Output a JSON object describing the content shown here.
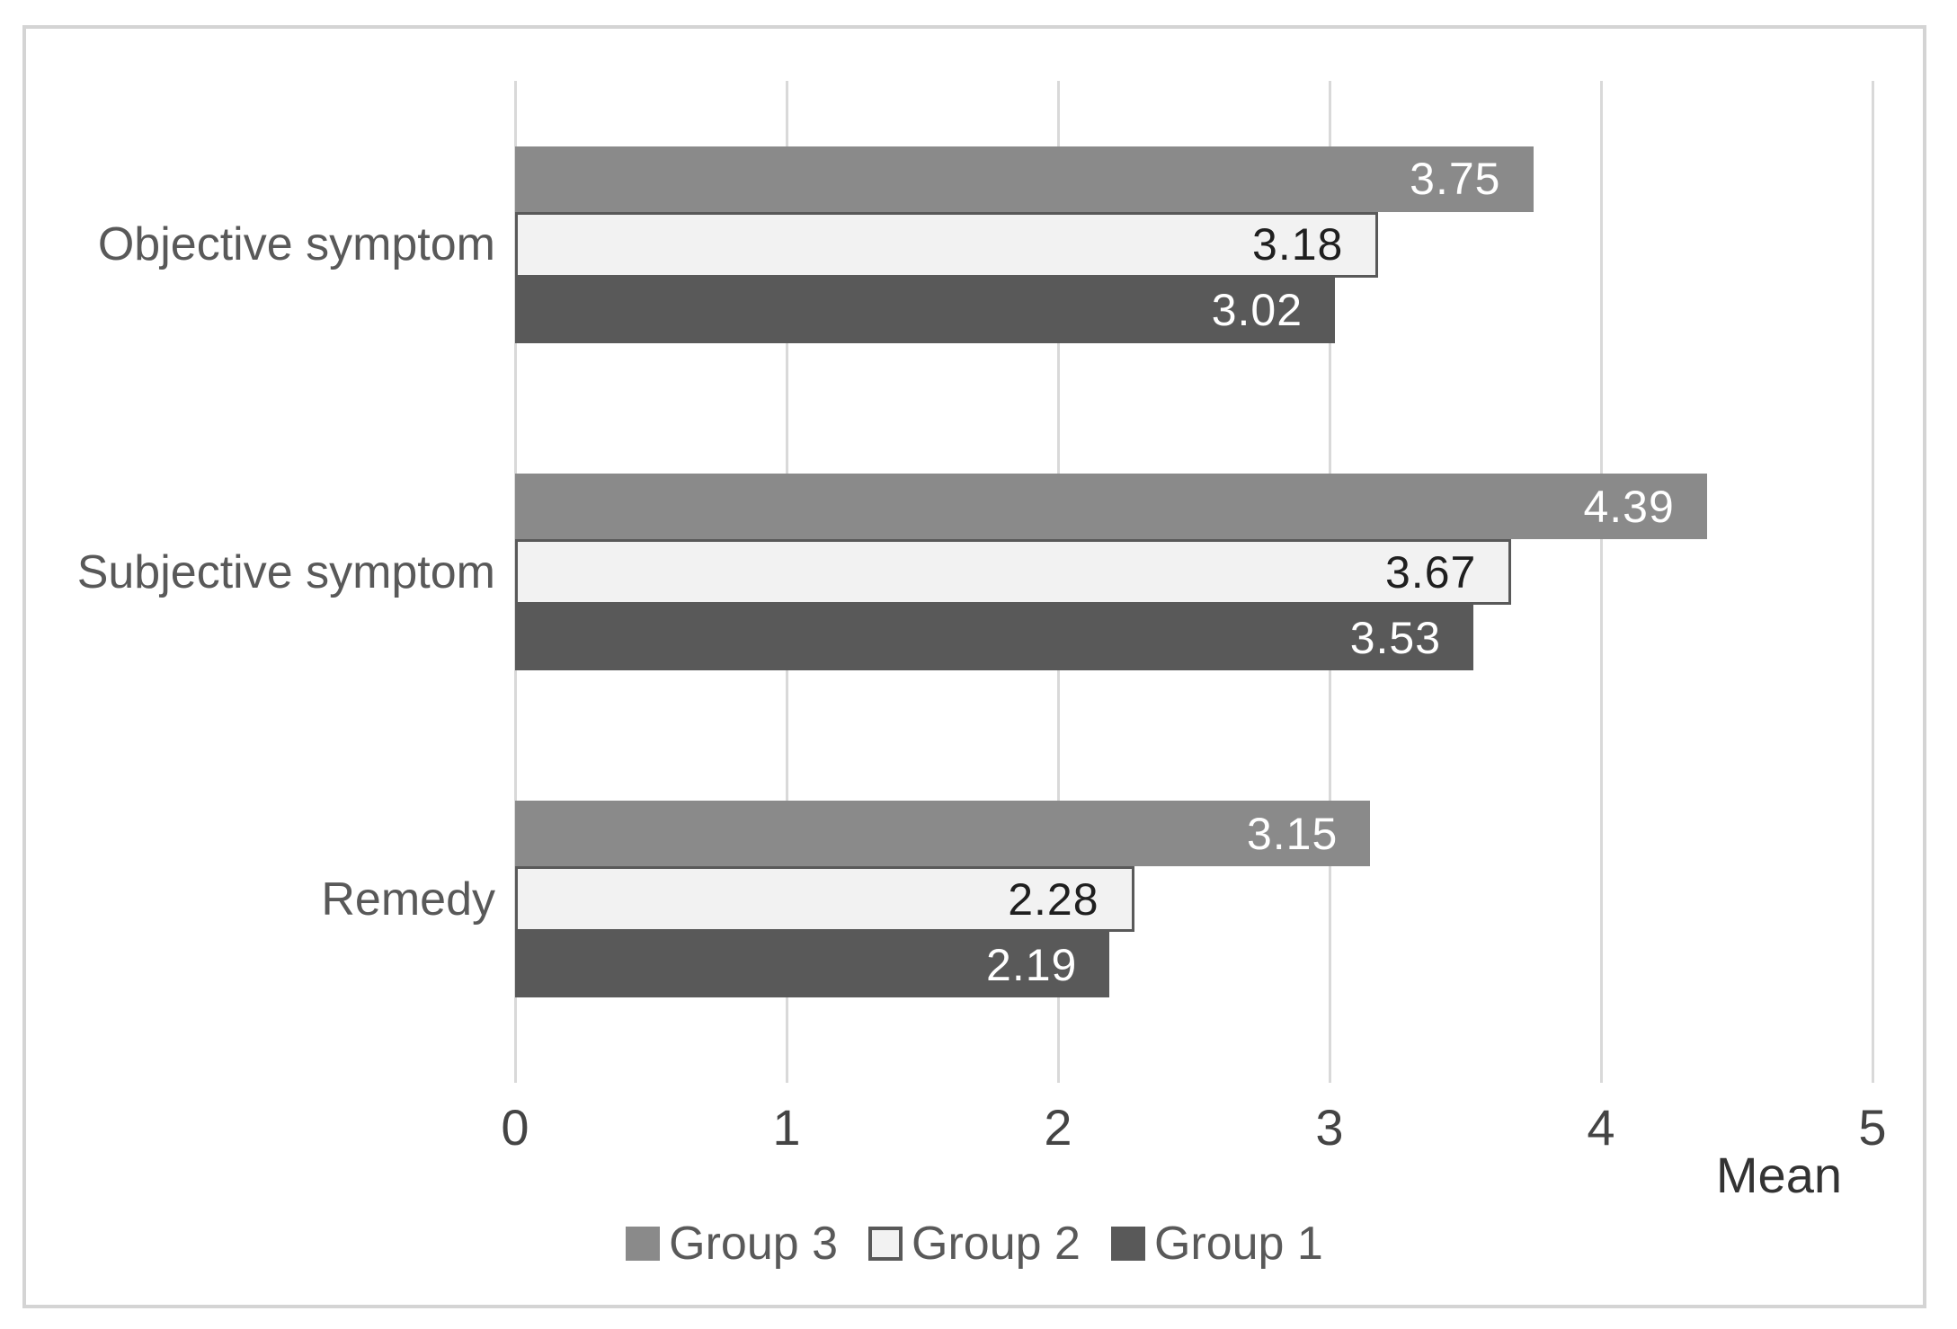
{
  "chart_data": {
    "type": "bar",
    "orientation": "horizontal",
    "title": "",
    "xlabel": "Mean",
    "ylabel": "",
    "xlim": [
      0,
      5
    ],
    "xticks": [
      0,
      1,
      2,
      3,
      4,
      5
    ],
    "grid": "vertical",
    "legend_position": "bottom-center",
    "categories": [
      "Objective symptom",
      "Subjective symptom",
      "Remedy"
    ],
    "series": [
      {
        "name": "Group 3",
        "color": "#8a8a8a",
        "border_color": "",
        "value_text_color": "#ffffff",
        "values": [
          3.75,
          4.39,
          3.15
        ]
      },
      {
        "name": "Group 2",
        "color": "#f2f2f2",
        "border_color": "#595959",
        "value_text_color": "#1f1f1f",
        "values": [
          3.18,
          3.67,
          2.28
        ]
      },
      {
        "name": "Group 1",
        "color": "#595959",
        "border_color": "",
        "value_text_color": "#ffffff",
        "values": [
          3.02,
          3.53,
          2.19
        ]
      }
    ],
    "value_label_decimals": 2
  },
  "colors": {
    "gridline": "#d9d9d9",
    "frame_border": "#d4d4d4",
    "background": "#ffffff",
    "category_text": "#595959",
    "tick_text": "#444444",
    "axis_title_text": "#333333"
  }
}
